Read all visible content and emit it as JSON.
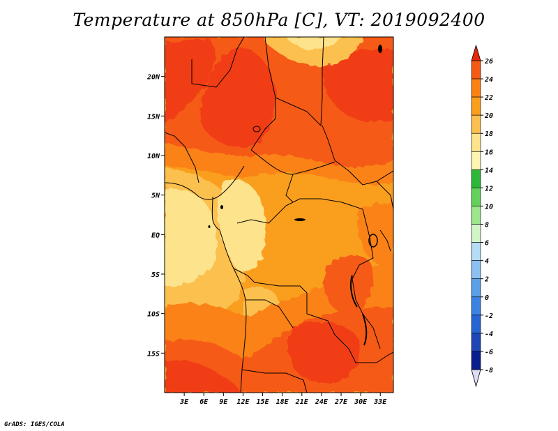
{
  "title": "Temperature at 850hPa [C], VT: 2019092400",
  "credit": "GrADS: IGES/COLA",
  "map": {
    "lon_range": [
      0,
      35
    ],
    "lat_range": [
      -20,
      25
    ],
    "x_ticks": [
      {
        "value": 3,
        "label": "3E"
      },
      {
        "value": 6,
        "label": "6E"
      },
      {
        "value": 9,
        "label": "9E"
      },
      {
        "value": 12,
        "label": "12E"
      },
      {
        "value": 15,
        "label": "15E"
      },
      {
        "value": 18,
        "label": "18E"
      },
      {
        "value": 21,
        "label": "21E"
      },
      {
        "value": 24,
        "label": "24E"
      },
      {
        "value": 27,
        "label": "27E"
      },
      {
        "value": 30,
        "label": "30E"
      },
      {
        "value": 33,
        "label": "33E"
      }
    ],
    "y_ticks": [
      {
        "value": 20,
        "label": "20N"
      },
      {
        "value": 15,
        "label": "15N"
      },
      {
        "value": 10,
        "label": "10N"
      },
      {
        "value": 5,
        "label": "5N"
      },
      {
        "value": 0,
        "label": "EQ"
      },
      {
        "value": -5,
        "label": "5S"
      },
      {
        "value": -10,
        "label": "10S"
      },
      {
        "value": -15,
        "label": "15S"
      }
    ]
  },
  "colorbar": {
    "levels": [
      {
        "label": "26",
        "color": "#f03c14"
      },
      {
        "label": "24",
        "color": "#f55a14"
      },
      {
        "label": "22",
        "color": "#fa8214"
      },
      {
        "label": "20",
        "color": "#fa9e1e"
      },
      {
        "label": "18",
        "color": "#fcc050"
      },
      {
        "label": "16",
        "color": "#fde38c"
      },
      {
        "label": "14",
        "color": "#fdf5b4"
      },
      {
        "label": "12",
        "color": "#2eb83a"
      },
      {
        "label": "10",
        "color": "#64d25a"
      },
      {
        "label": "8",
        "color": "#9ee68c"
      },
      {
        "label": "6",
        "color": "#d2f5c8"
      },
      {
        "label": "4",
        "color": "#b4dcf5"
      },
      {
        "label": "2",
        "color": "#8cc0f0"
      },
      {
        "label": "0",
        "color": "#5aa0e6"
      },
      {
        "label": "-2",
        "color": "#3c82e1"
      },
      {
        "label": "-4",
        "color": "#2864d2"
      },
      {
        "label": "-6",
        "color": "#1e46b4"
      },
      {
        "label": "-8",
        "color": "#0a1e8c"
      }
    ],
    "top_arrow_color": "#e6280a",
    "bottom_arrow_color": "#dcdcf5"
  }
}
